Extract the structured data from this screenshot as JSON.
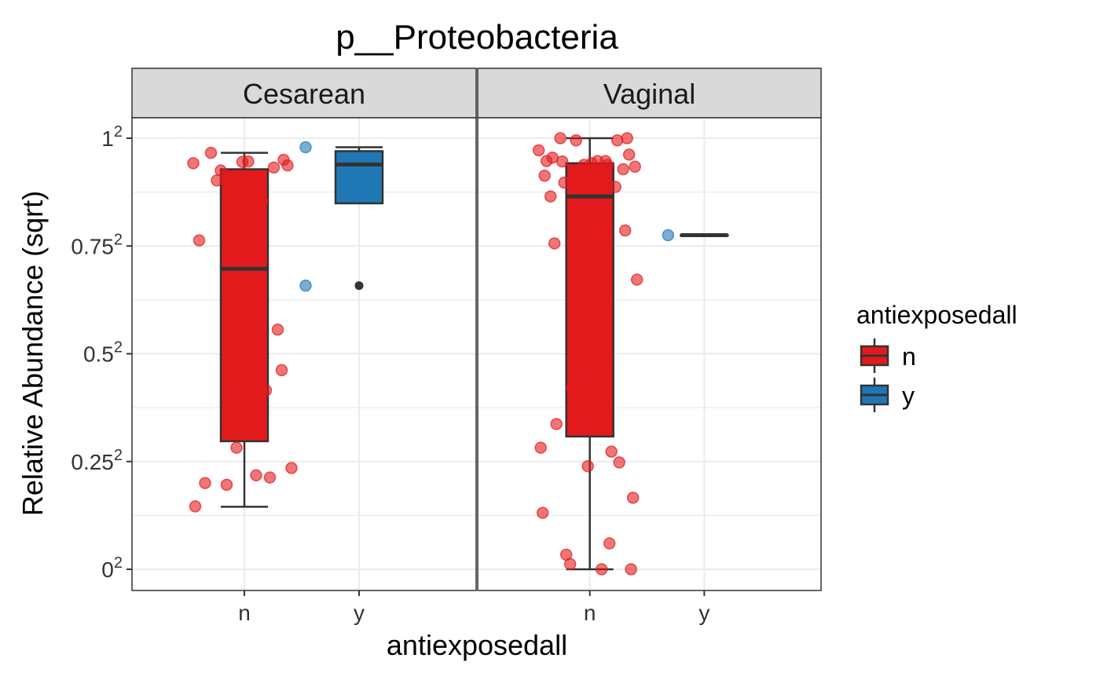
{
  "chart_data": {
    "type": "box",
    "title": "p__Proteobacteria",
    "xlabel": "antiexposedall",
    "ylabel": "Relative Abundance (sqrt)",
    "categories": [
      "n",
      "y"
    ],
    "y_scale": "sqrt",
    "y_ticks": [
      {
        "value": 0,
        "base": "0",
        "exp": "2"
      },
      {
        "value": 0.25,
        "base": "0.25",
        "exp": "2"
      },
      {
        "value": 0.5,
        "base": "0.5",
        "exp": "2"
      },
      {
        "value": 0.75,
        "base": "0.75",
        "exp": "2"
      },
      {
        "value": 1,
        "base": "1",
        "exp": "2"
      }
    ],
    "ylim": [
      0,
      1
    ],
    "grid": true,
    "legend": {
      "title": "antiexposedall",
      "placement": "right",
      "items": [
        {
          "label": "n",
          "color": "#E31A1C"
        },
        {
          "label": "y",
          "color": "#1F78B4"
        }
      ]
    },
    "panels": [
      {
        "facet": "Cesarean",
        "boxes": [
          {
            "category": "n",
            "color": "#E31A1C",
            "q1": 0.297,
            "median": 0.697,
            "q3": 0.928,
            "whisker_low": 0.145,
            "whisker_high": 0.966,
            "outliers": [],
            "points": [
              0.942,
              0.95,
              0.902,
              0.855,
              0.763,
              0.556,
              0.282,
              0.213,
              0.2,
              0.235,
              0.196,
              0.946,
              0.966,
              0.932,
              0.945,
              0.937,
              0.925,
              0.218,
              0.146,
              0.415,
              0.406,
              0.462
            ]
          },
          {
            "category": "y",
            "color": "#1F78B4",
            "q1": 0.849,
            "median": 0.939,
            "q3": 0.97,
            "whisker_low": 0.849,
            "whisker_high": 0.979,
            "outliers": [
              0.658
            ],
            "points": [
              0.979,
              0.658
            ]
          }
        ]
      },
      {
        "facet": "Vaginal",
        "boxes": [
          {
            "category": "n",
            "color": "#E31A1C",
            "q1": 0.308,
            "median": 0.865,
            "q3": 0.942,
            "whisker_low": 0.0,
            "whisker_high": 1.0,
            "outliers": [],
            "points": [
              0.972,
              0.962,
              0.946,
              0.938,
              0.913,
              0.928,
              0.919,
              0.887,
              0.865,
              0.672,
              0.421,
              0.346,
              0.337,
              0.248,
              0.239,
              0.166,
              0.034,
              0.0,
              0.282,
              0.273,
              0.995,
              1.0,
              1.0,
              0.947,
              0.947,
              0.947,
              0.938,
              0.934,
              0.897,
              0.786,
              0.452,
              0.995,
              0.955,
              0.942,
              0.131,
              0.06,
              0.012,
              0.0,
              0.756
            ]
          },
          {
            "category": "y",
            "color": "#1F78B4",
            "q1": 0.775,
            "median": 0.775,
            "q3": 0.775,
            "whisker_low": 0.775,
            "whisker_high": 0.775,
            "outliers": [],
            "points": [
              0.775
            ]
          }
        ]
      }
    ]
  }
}
